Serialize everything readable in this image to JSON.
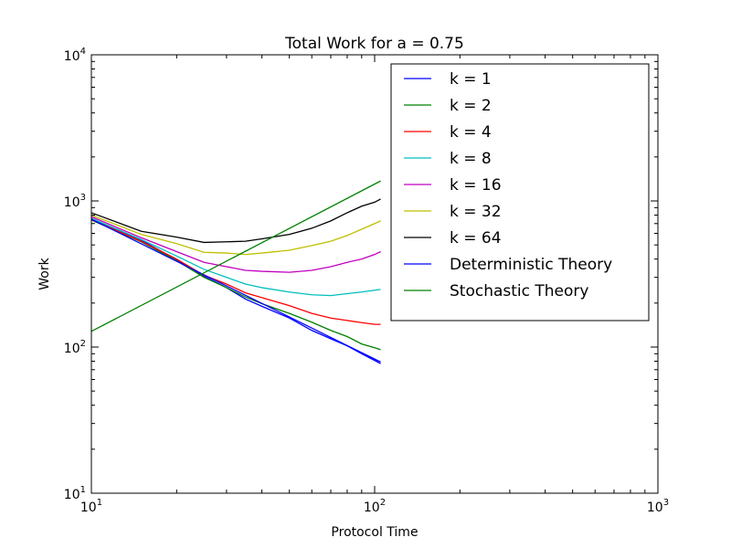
{
  "chart_data": {
    "type": "line",
    "title": "Total Work for a = 0.75",
    "xlabel": "Protocol Time",
    "ylabel": "Work",
    "xscale": "log",
    "yscale": "log",
    "xlim": [
      10,
      1000
    ],
    "ylim": [
      10,
      10000
    ],
    "xticks": [
      {
        "base": "10",
        "exp": "1"
      },
      {
        "base": "10",
        "exp": "2"
      },
      {
        "base": "10",
        "exp": "3"
      }
    ],
    "yticks": [
      {
        "base": "10",
        "exp": "1"
      },
      {
        "base": "10",
        "exp": "2"
      },
      {
        "base": "10",
        "exp": "3"
      },
      {
        "base": "10",
        "exp": "4"
      }
    ],
    "grid": false,
    "legend_position": "upper-right",
    "series": [
      {
        "name": "k = 1",
        "color": "#0000ff",
        "x": [
          10,
          15,
          20,
          25,
          30,
          35,
          40,
          50,
          60,
          70,
          80,
          90,
          100,
          105
        ],
        "y": [
          760,
          540,
          395,
          305,
          255,
          213,
          190,
          158,
          130,
          114,
          102,
          90,
          81,
          77
        ]
      },
      {
        "name": "k = 2",
        "color": "#008000",
        "x": [
          10,
          15,
          20,
          25,
          30,
          35,
          40,
          50,
          60,
          70,
          80,
          90,
          100,
          105
        ],
        "y": [
          740,
          525,
          390,
          300,
          255,
          220,
          198,
          170,
          148,
          130,
          118,
          105,
          99,
          96
        ]
      },
      {
        "name": "k = 4",
        "color": "#ff0000",
        "x": [
          10,
          15,
          20,
          25,
          30,
          35,
          40,
          50,
          60,
          70,
          80,
          90,
          100,
          105
        ],
        "y": [
          745,
          530,
          400,
          310,
          270,
          235,
          218,
          192,
          170,
          158,
          152,
          147,
          143,
          143
        ]
      },
      {
        "name": "k = 8",
        "color": "#00bfbf",
        "x": [
          10,
          15,
          20,
          25,
          30,
          35,
          40,
          50,
          60,
          70,
          80,
          90,
          100,
          105
        ],
        "y": [
          760,
          545,
          420,
          340,
          300,
          270,
          255,
          238,
          228,
          225,
          232,
          238,
          245,
          248
        ]
      },
      {
        "name": "k = 16",
        "color": "#bf00bf",
        "x": [
          10,
          15,
          20,
          25,
          30,
          35,
          40,
          50,
          60,
          70,
          80,
          90,
          100,
          105
        ],
        "y": [
          780,
          560,
          450,
          380,
          355,
          335,
          330,
          325,
          335,
          355,
          380,
          400,
          430,
          450
        ]
      },
      {
        "name": "k = 32",
        "color": "#bfbf00",
        "x": [
          10,
          15,
          20,
          25,
          30,
          35,
          40,
          50,
          60,
          70,
          80,
          90,
          100,
          105
        ],
        "y": [
          800,
          590,
          510,
          445,
          440,
          430,
          440,
          460,
          495,
          530,
          580,
          640,
          700,
          730
        ]
      },
      {
        "name": "k = 64",
        "color": "#000000",
        "x": [
          10,
          15,
          20,
          25,
          30,
          35,
          40,
          50,
          60,
          70,
          80,
          90,
          100,
          105
        ],
        "y": [
          830,
          620,
          565,
          520,
          525,
          530,
          550,
          590,
          650,
          730,
          830,
          920,
          980,
          1030
        ]
      },
      {
        "name": "Deterministic Theory",
        "color": "#0000ff",
        "x": [
          10,
          105
        ],
        "y": [
          750,
          79
        ]
      },
      {
        "name": "Stochastic Theory",
        "color": "#008000",
        "x": [
          10,
          105
        ],
        "y": [
          128,
          1370
        ]
      }
    ]
  }
}
